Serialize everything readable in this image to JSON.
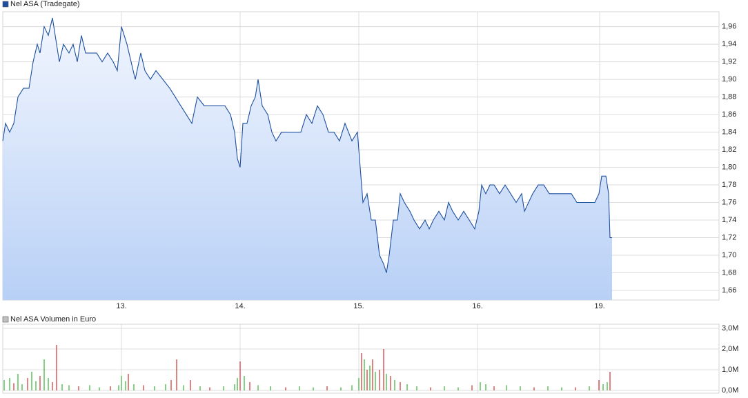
{
  "chart_data": [
    {
      "type": "area",
      "series": [
        {
          "name": "Nel ASA (Tradegate)",
          "color": "#1c4fa0",
          "x": [
            0,
            4,
            10,
            16,
            22,
            30,
            38,
            44,
            50,
            54,
            60,
            66,
            72,
            76,
            82,
            88,
            96,
            102,
            108,
            114,
            120,
            128,
            136,
            144,
            152,
            160,
            166,
            172,
            180,
            186,
            192,
            200,
            206,
            214,
            222,
            232,
            242,
            250,
            258,
            266,
            274,
            282,
            292,
            302,
            312,
            322,
            330,
            336,
            340,
            344,
            348,
            354,
            360,
            366,
            370,
            376,
            384,
            390,
            396,
            404,
            414,
            424,
            432,
            440,
            448,
            456,
            464,
            472,
            480,
            488,
            496,
            506,
            514,
            518,
            522,
            528,
            534,
            540,
            546,
            552,
            556,
            560,
            566,
            572,
            576,
            582,
            590,
            596,
            604,
            612,
            618,
            624,
            632,
            640,
            646,
            652,
            660,
            668,
            676,
            684,
            690,
            694,
            700,
            706,
            712,
            720,
            728,
            736,
            744,
            752,
            756,
            762,
            768,
            776,
            784,
            792,
            800,
            808,
            816,
            824,
            832,
            842,
            850,
            858,
            864,
            868,
            874,
            878,
            880,
            883
          ],
          "values": [
            1.83,
            1.85,
            1.84,
            1.85,
            1.88,
            1.89,
            1.89,
            1.92,
            1.94,
            1.93,
            1.96,
            1.95,
            1.97,
            1.95,
            1.92,
            1.94,
            1.93,
            1.94,
            1.92,
            1.95,
            1.93,
            1.93,
            1.93,
            1.92,
            1.93,
            1.92,
            1.91,
            1.96,
            1.94,
            1.92,
            1.9,
            1.93,
            1.91,
            1.9,
            1.91,
            1.9,
            1.89,
            1.88,
            1.87,
            1.86,
            1.85,
            1.88,
            1.87,
            1.87,
            1.87,
            1.87,
            1.86,
            1.84,
            1.81,
            1.8,
            1.85,
            1.85,
            1.87,
            1.88,
            1.9,
            1.87,
            1.86,
            1.84,
            1.83,
            1.84,
            1.84,
            1.84,
            1.84,
            1.86,
            1.85,
            1.87,
            1.86,
            1.84,
            1.84,
            1.83,
            1.85,
            1.83,
            1.84,
            1.8,
            1.76,
            1.77,
            1.74,
            1.74,
            1.7,
            1.69,
            1.68,
            1.7,
            1.74,
            1.74,
            1.77,
            1.76,
            1.75,
            1.74,
            1.73,
            1.74,
            1.73,
            1.74,
            1.75,
            1.74,
            1.76,
            1.75,
            1.74,
            1.75,
            1.74,
            1.73,
            1.75,
            1.78,
            1.77,
            1.78,
            1.78,
            1.77,
            1.78,
            1.77,
            1.76,
            1.77,
            1.75,
            1.76,
            1.77,
            1.78,
            1.78,
            1.77,
            1.77,
            1.77,
            1.77,
            1.77,
            1.76,
            1.76,
            1.76,
            1.76,
            1.77,
            1.79,
            1.79,
            1.77,
            1.72,
            1.72
          ]
        }
      ],
      "xlim": [
        0,
        1038
      ],
      "xticks": [
        {
          "value": 172,
          "label": "13."
        },
        {
          "value": 344,
          "label": "14."
        },
        {
          "value": 516,
          "label": "15."
        },
        {
          "value": 688,
          "label": "16."
        },
        {
          "value": 865,
          "label": "19."
        }
      ],
      "ylim": [
        1.649,
        1.977
      ],
      "yticks": [
        {
          "value": 1.66,
          "label": "1,66"
        },
        {
          "value": 1.68,
          "label": "1,68"
        },
        {
          "value": 1.7,
          "label": "1,70"
        },
        {
          "value": 1.72,
          "label": "1,72"
        },
        {
          "value": 1.74,
          "label": "1,74"
        },
        {
          "value": 1.76,
          "label": "1,76"
        },
        {
          "value": 1.78,
          "label": "1,78"
        },
        {
          "value": 1.8,
          "label": "1,80"
        },
        {
          "value": 1.82,
          "label": "1,82"
        },
        {
          "value": 1.84,
          "label": "1,84"
        },
        {
          "value": 1.86,
          "label": "1,86"
        },
        {
          "value": 1.88,
          "label": "1,88"
        },
        {
          "value": 1.9,
          "label": "1,90"
        },
        {
          "value": 1.92,
          "label": "1,92"
        },
        {
          "value": 1.94,
          "label": "1,94"
        },
        {
          "value": 1.96,
          "label": "1,96"
        }
      ],
      "grid": true
    },
    {
      "type": "bar",
      "series": [
        {
          "name": "Nel ASA Volumen in Euro",
          "color": "#c0c0c0",
          "x": [
            2,
            10,
            16,
            22,
            28,
            36,
            42,
            48,
            54,
            60,
            66,
            72,
            78,
            86,
            96,
            110,
            126,
            140,
            156,
            168,
            172,
            178,
            182,
            190,
            204,
            220,
            236,
            244,
            252,
            262,
            272,
            286,
            300,
            320,
            336,
            340,
            344,
            350,
            358,
            370,
            388,
            410,
            430,
            450,
            470,
            490,
            506,
            516,
            520,
            524,
            528,
            532,
            536,
            540,
            546,
            552,
            556,
            562,
            568,
            576,
            586,
            600,
            620,
            640,
            660,
            680,
            692,
            700,
            712,
            730,
            750,
            770,
            790,
            810,
            830,
            850,
            864,
            870,
            876,
            880
          ],
          "values": [
            500000,
            600000,
            350000,
            800000,
            300000,
            600000,
            900000,
            450000,
            700000,
            1500000,
            600000,
            400000,
            2200000,
            300000,
            250000,
            200000,
            250000,
            150000,
            200000,
            250000,
            700000,
            450000,
            800000,
            300000,
            250000,
            200000,
            300000,
            500000,
            1500000,
            250000,
            500000,
            200000,
            150000,
            200000,
            300000,
            600000,
            1400000,
            700000,
            400000,
            250000,
            200000,
            150000,
            200000,
            150000,
            200000,
            150000,
            250000,
            600000,
            1800000,
            1500000,
            1000000,
            1200000,
            1500000,
            900000,
            1000000,
            2000000,
            800000,
            700000,
            500000,
            400000,
            300000,
            200000,
            150000,
            200000,
            150000,
            250000,
            400000,
            300000,
            200000,
            250000,
            200000,
            150000,
            200000,
            150000,
            150000,
            200000,
            500000,
            300000,
            400000,
            900000
          ],
          "colors": [
            "#33b033",
            "#33b033",
            "#d03030",
            "#33b033",
            "#33b033",
            "#d03030",
            "#33b033",
            "#33b033",
            "#d03030",
            "#33b033",
            "#33b033",
            "#d03030",
            "#d03030",
            "#33b033",
            "#33b033",
            "#d03030",
            "#33b033",
            "#33b033",
            "#d03030",
            "#33b033",
            "#33b033",
            "#33b033",
            "#d03030",
            "#33b033",
            "#d03030",
            "#33b033",
            "#33b033",
            "#d03030",
            "#d03030",
            "#33b033",
            "#d03030",
            "#33b033",
            "#d03030",
            "#33b033",
            "#33b033",
            "#33b033",
            "#d03030",
            "#33b033",
            "#d03030",
            "#33b033",
            "#33b033",
            "#d03030",
            "#33b033",
            "#33b033",
            "#d03030",
            "#33b033",
            "#33b033",
            "#33b033",
            "#d03030",
            "#33b033",
            "#d03030",
            "#33b033",
            "#d03030",
            "#33b033",
            "#d03030",
            "#d03030",
            "#33b033",
            "#d03030",
            "#33b033",
            "#d03030",
            "#33b033",
            "#33b033",
            "#d03030",
            "#33b033",
            "#33b033",
            "#d03030",
            "#33b033",
            "#33b033",
            "#d03030",
            "#33b033",
            "#33b033",
            "#d03030",
            "#33b033",
            "#33b033",
            "#d03030",
            "#33b033",
            "#d03030",
            "#33b033",
            "#33b033",
            "#d03030"
          ]
        }
      ],
      "xlim": [
        0,
        1038
      ],
      "ylim": [
        0,
        3000000
      ],
      "yticks": [
        {
          "value": 0,
          "label": "0,0M"
        },
        {
          "value": 1000000,
          "label": "1,0M"
        },
        {
          "value": 2000000,
          "label": "2,0M"
        },
        {
          "value": 3000000,
          "label": "3,0M"
        }
      ],
      "grid": true
    }
  ]
}
